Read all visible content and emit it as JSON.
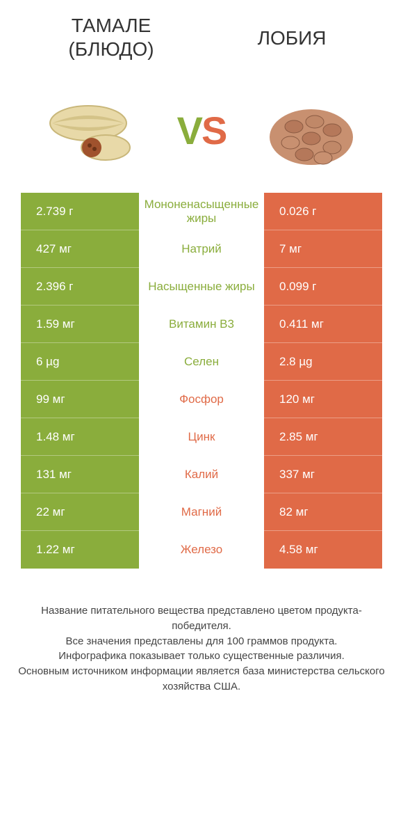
{
  "colors": {
    "green": "#8aad3c",
    "orange": "#e06a47",
    "text": "#333333",
    "bg": "#ffffff"
  },
  "header": {
    "left_line1": "ТАМАЛЕ",
    "left_line2": "(БЛЮДО)",
    "right": "ЛОБИЯ"
  },
  "vs": {
    "v": "V",
    "s": "S"
  },
  "rows": [
    {
      "left": "2.739 г",
      "mid": "Мононенасыщенные жиры",
      "right": "0.026 г",
      "winner": "left"
    },
    {
      "left": "427 мг",
      "mid": "Натрий",
      "right": "7 мг",
      "winner": "left"
    },
    {
      "left": "2.396 г",
      "mid": "Насыщенные жиры",
      "right": "0.099 г",
      "winner": "left"
    },
    {
      "left": "1.59 мг",
      "mid": "Витамин B3",
      "right": "0.411 мг",
      "winner": "left"
    },
    {
      "left": "6 µg",
      "mid": "Селен",
      "right": "2.8 µg",
      "winner": "left"
    },
    {
      "left": "99 мг",
      "mid": "Фосфор",
      "right": "120 мг",
      "winner": "right"
    },
    {
      "left": "1.48 мг",
      "mid": "Цинк",
      "right": "2.85 мг",
      "winner": "right"
    },
    {
      "left": "131 мг",
      "mid": "Калий",
      "right": "337 мг",
      "winner": "right"
    },
    {
      "left": "22 мг",
      "mid": "Магний",
      "right": "82 мг",
      "winner": "right"
    },
    {
      "left": "1.22 мг",
      "mid": "Железо",
      "right": "4.58 мг",
      "winner": "right"
    }
  ],
  "footer": {
    "l1": "Название питательного вещества представлено цветом продукта-победителя.",
    "l2": "Все значения представлены для 100 граммов продукта.",
    "l3": "Инфографика показывает только существенные различия.",
    "l4": "Основным источником информации является база министерства сельского хозяйства США."
  }
}
